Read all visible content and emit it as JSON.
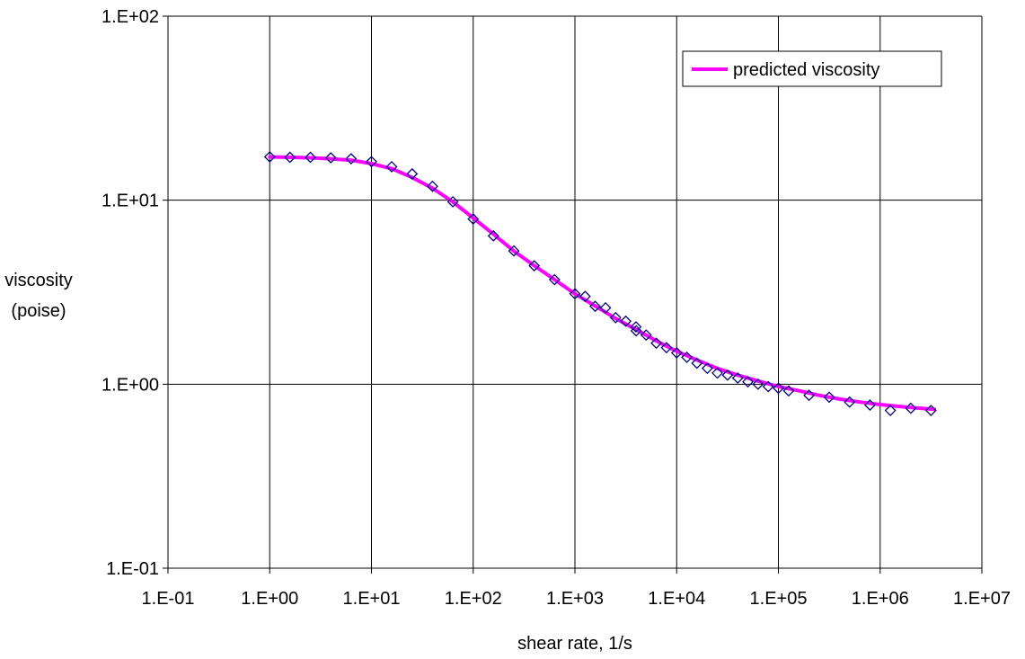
{
  "chart_data": {
    "type": "line",
    "title": "",
    "xlabel": "shear rate, 1/s",
    "ylabel_lines": [
      "viscosity",
      "(poise)"
    ],
    "x_scale": "log",
    "y_scale": "log",
    "xlim": [
      0.1,
      10000000
    ],
    "ylim": [
      0.1,
      100
    ],
    "x_ticks": [
      "1.E-01",
      "1.E+00",
      "1.E+01",
      "1.E+02",
      "1.E+03",
      "1.E+04",
      "1.E+05",
      "1.E+06",
      "1.E+07"
    ],
    "y_ticks": [
      "1.E-01",
      "1.E+00",
      "1.E+01",
      "1.E+02"
    ],
    "grid": true,
    "legend_position": "top-right",
    "series": [
      {
        "name": "predicted viscosity",
        "kind": "line",
        "color": "#ff00ff",
        "x": [
          1,
          1.6,
          2.5,
          4,
          6.3,
          10,
          16,
          25,
          40,
          63,
          100,
          160,
          250,
          400,
          630,
          1000,
          1600,
          2500,
          4000,
          6300,
          10000,
          16000,
          25000,
          40000,
          63000,
          100000,
          160000,
          250000,
          400000,
          630000,
          1000000,
          1600000,
          2500000,
          3400000
        ],
        "y": [
          17.2,
          17.1,
          17.0,
          16.8,
          16.5,
          15.8,
          14.8,
          13.3,
          11.6,
          9.8,
          8.0,
          6.5,
          5.3,
          4.4,
          3.7,
          3.1,
          2.65,
          2.28,
          1.98,
          1.72,
          1.51,
          1.35,
          1.22,
          1.12,
          1.04,
          0.97,
          0.92,
          0.87,
          0.83,
          0.8,
          0.775,
          0.755,
          0.74,
          0.73
        ]
      },
      {
        "kind": "markers",
        "color": "#00008b",
        "x": [
          1,
          1.58,
          2.51,
          3.98,
          6.31,
          10,
          15.8,
          25.1,
          39.8,
          63.1,
          100,
          158,
          251,
          398,
          631,
          1000,
          1260,
          1580,
          2000,
          2510,
          3160,
          3980,
          4000,
          5010,
          6310,
          7940,
          10000,
          12600,
          15800,
          20000,
          25100,
          31600,
          39800,
          50100,
          63100,
          79400,
          100000,
          126000,
          200000,
          316000,
          501000,
          794000,
          1260000,
          2000000,
          3160000
        ],
        "y": [
          17.2,
          17.1,
          17.1,
          17.0,
          16.8,
          16.2,
          15.2,
          13.9,
          11.9,
          9.8,
          7.9,
          6.4,
          5.3,
          4.4,
          3.7,
          3.1,
          3.0,
          2.65,
          2.6,
          2.3,
          2.2,
          2.05,
          1.95,
          1.85,
          1.67,
          1.58,
          1.48,
          1.4,
          1.3,
          1.22,
          1.15,
          1.12,
          1.08,
          1.03,
          1.0,
          0.97,
          0.95,
          0.92,
          0.87,
          0.85,
          0.8,
          0.77,
          0.72,
          0.74,
          0.72
        ]
      }
    ]
  }
}
